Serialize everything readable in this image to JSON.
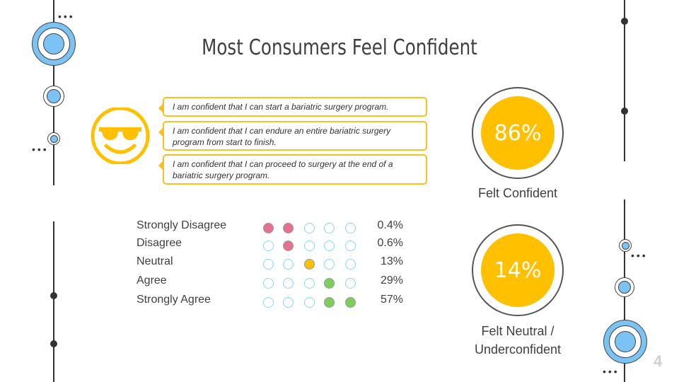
{
  "title": "Most Consumers Feel Confident",
  "statements": [
    "I am confident that I can start a bariatric surgery program.",
    "I am confident that I can endure an entire bariatric surgery program from start to finish.",
    "I am confident that I can proceed to surgery at the end of a bariatric surgery program."
  ],
  "icon": "sunglasses-smiley-icon",
  "scale": [
    {
      "label": "Strongly Disagree",
      "pct": "0.4%",
      "filled": [
        1,
        1,
        0,
        0,
        0
      ],
      "color": "#e8708f"
    },
    {
      "label": "Disagree",
      "pct": "0.6%",
      "filled": [
        0,
        1,
        0,
        0,
        0
      ],
      "color": "#e8708f"
    },
    {
      "label": "Neutral",
      "pct": "13%",
      "filled": [
        0,
        0,
        1,
        0,
        0
      ],
      "color": "#ffc000"
    },
    {
      "label": "Agree",
      "pct": "29%",
      "filled": [
        0,
        0,
        0,
        1,
        0
      ],
      "color": "#7ccf5a"
    },
    {
      "label": "Strongly Agree",
      "pct": "57%",
      "filled": [
        0,
        0,
        0,
        1,
        1
      ],
      "color": "#7ccf5a"
    }
  ],
  "confident": {
    "value": "86%",
    "label": "Felt Confident"
  },
  "neutral": {
    "value": "14%",
    "label": "Felt Neutral / Underconfident"
  },
  "page_number": "4",
  "colors": {
    "accent": "#ffc000",
    "decor": "#7cc3f5"
  }
}
